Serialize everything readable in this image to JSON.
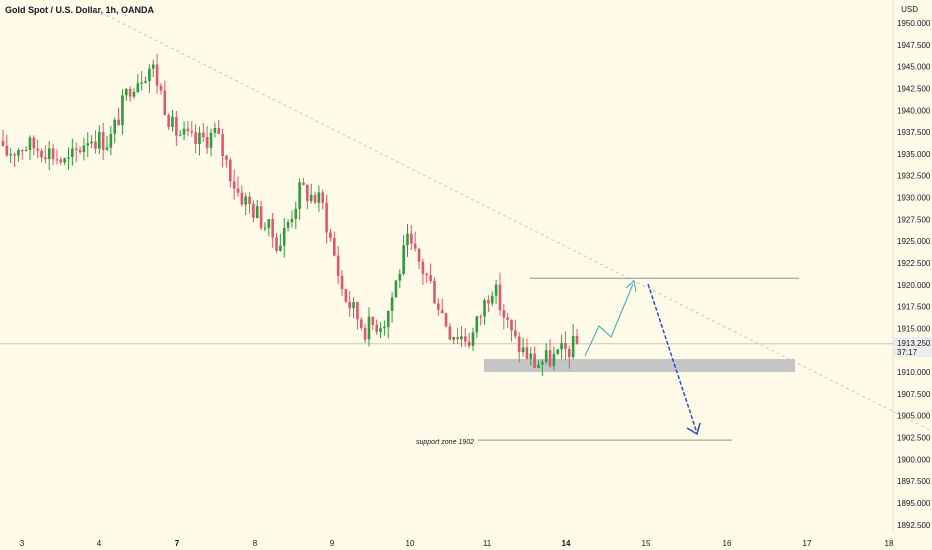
{
  "header": {
    "title": "Gold Spot / U.S. Dollar, 1h, OANDA",
    "currency": "USD"
  },
  "colors": {
    "up": "#26a69a",
    "up_body": "#2e9b3c",
    "down": "#ef5350",
    "down_body": "#e0566e",
    "trend": "#c7c7c7",
    "projection_up": "#3fa9b0",
    "projection_down": "#2a4bd7",
    "zone": "#c5c5c5",
    "level": "#8d9299",
    "background": "#fffbe8"
  },
  "price_tag": {
    "price": "1913.250",
    "countdown": "37:17"
  },
  "annotations": {
    "support_label": "support zone 1902"
  },
  "chart_data": {
    "type": "candlestick",
    "title": "Gold Spot / U.S. Dollar, 1h, OANDA",
    "ylabel": "USD",
    "ylim": [
      1891.0,
      1952.5
    ],
    "y_ticks": [
      "1950.000",
      "1947.500",
      "1945.000",
      "1942.500",
      "1940.000",
      "1937.500",
      "1935.000",
      "1932.500",
      "1930.000",
      "1927.500",
      "1925.000",
      "1922.500",
      "1920.000",
      "1917.500",
      "1915.000",
      "1912.500",
      "1910.000",
      "1907.500",
      "1905.000",
      "1902.500",
      "1900.000",
      "1897.500",
      "1895.000",
      "1892.500"
    ],
    "x_ticks": [
      {
        "label": "3",
        "bold": false
      },
      {
        "label": "4",
        "bold": false
      },
      {
        "label": "7",
        "bold": true
      },
      {
        "label": "8",
        "bold": false
      },
      {
        "label": "9",
        "bold": false
      },
      {
        "label": "10",
        "bold": false
      },
      {
        "label": "11",
        "bold": false
      },
      {
        "label": "14",
        "bold": true
      },
      {
        "label": "15",
        "bold": false
      },
      {
        "label": "16",
        "bold": false
      },
      {
        "label": "17",
        "bold": false
      },
      {
        "label": "18",
        "bold": false
      }
    ],
    "current_price": 1913.25,
    "support_zone": [
      1910.0,
      1911.5
    ],
    "resistance_level": 1920.75,
    "support_level": 1902.2,
    "ohlc_anchors": [
      [
        1936.5,
        1934.9
      ],
      [
        1934.8,
        1936.0
      ],
      [
        1933.2,
        1935.6
      ],
      [
        1935.2,
        1933.8
      ],
      [
        1932.0,
        1937.0
      ],
      [
        1938.0,
        1936.4
      ],
      [
        1943.0,
        1943.0
      ],
      [
        1941.0,
        1945.2
      ],
      [
        1940.2,
        1937.8
      ],
      [
        1937.8,
        1936.2
      ],
      [
        1933.0,
        1937.4
      ],
      [
        1936.1,
        1930.8
      ],
      [
        1935.4,
        1928.0
      ],
      [
        1925.2,
        1924.6
      ],
      [
        1926.9,
        1931.0
      ],
      [
        1931.3,
        1929.4
      ],
      [
        1926.0,
        1919.0
      ],
      [
        1917.0,
        1915.0
      ],
      [
        1917.8,
        1916.1
      ],
      [
        1921.5,
        1924.8
      ],
      [
        1920.6,
        1920.7
      ],
      [
        1916.3,
        1914.8
      ],
      [
        1912.8,
        1913.7
      ],
      [
        1919.3,
        1920.1
      ],
      [
        1915.7,
        1913.7
      ],
      [
        1912.5,
        1911.0
      ],
      [
        1913.0,
        1911.7
      ],
      [
        1912.0,
        1913.2
      ]
    ]
  }
}
